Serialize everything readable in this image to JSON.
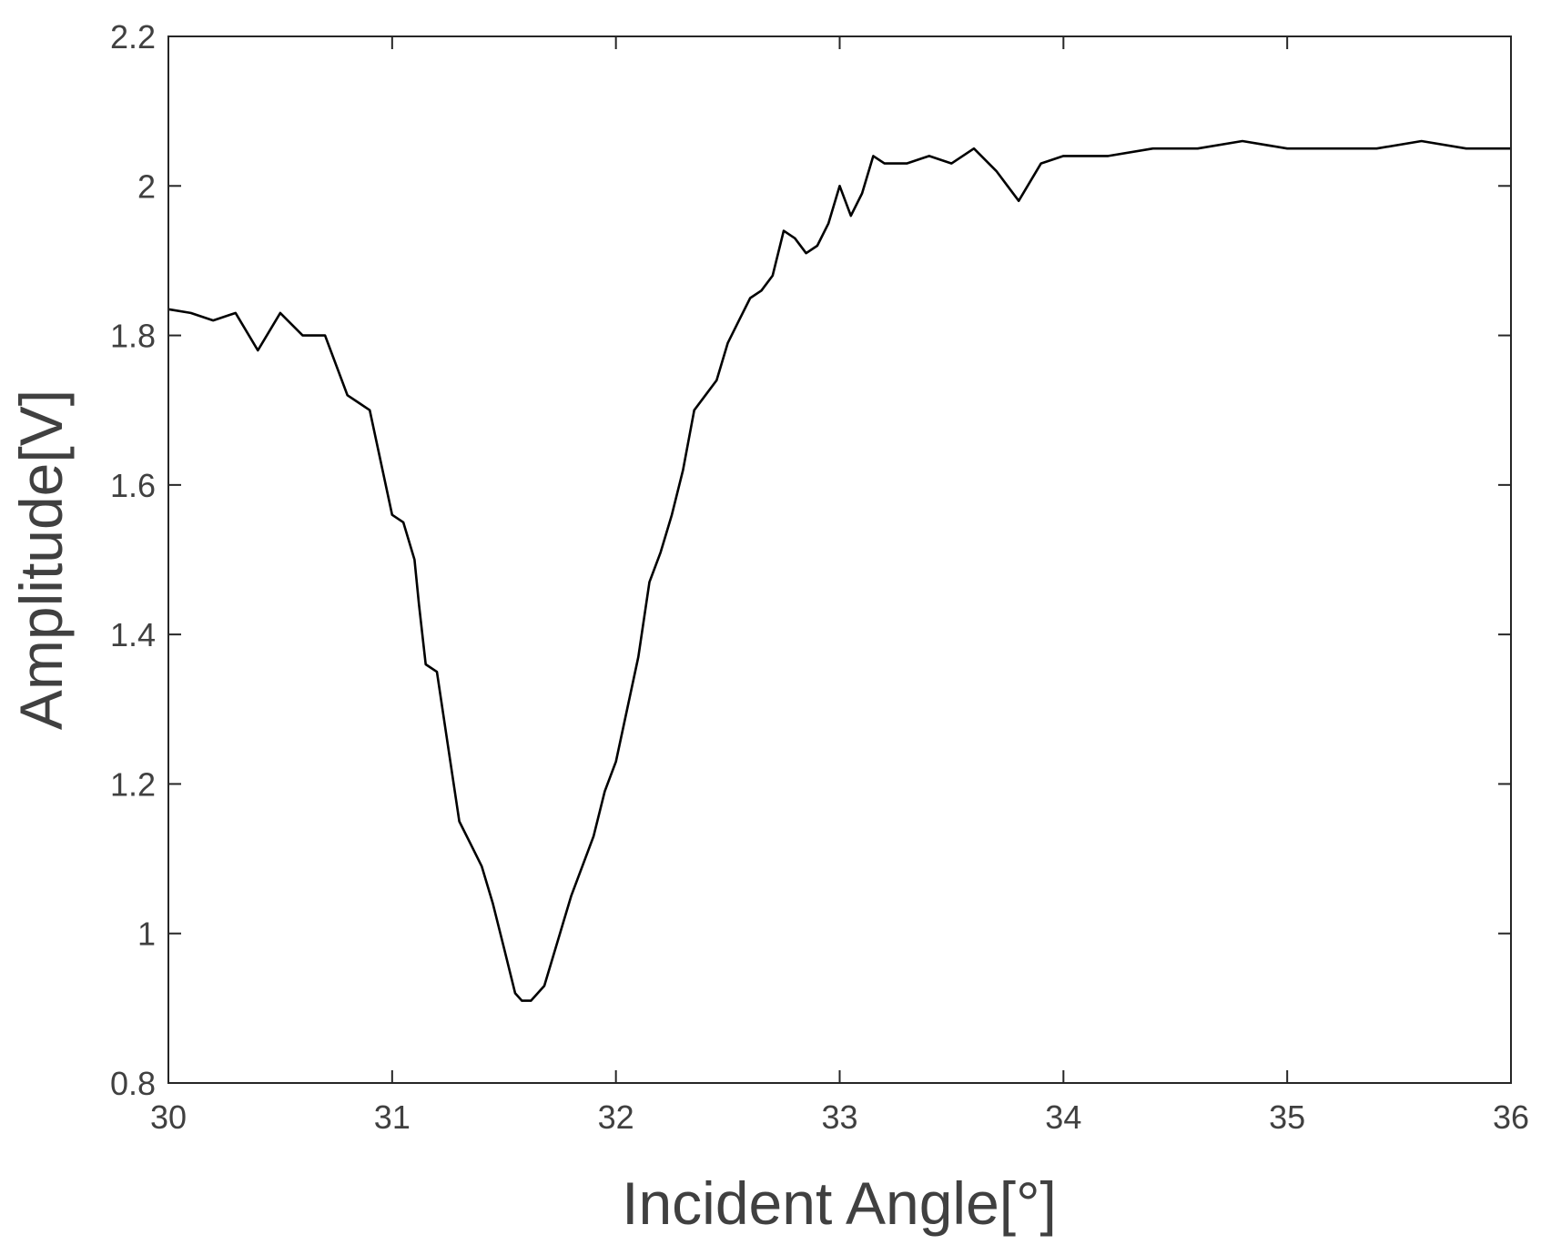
{
  "chart_data": {
    "type": "line",
    "title": "",
    "xlabel": "Incident Angle[°]",
    "ylabel": "Amplitude[V]",
    "xlim": [
      30,
      36
    ],
    "ylim": [
      0.8,
      2.2
    ],
    "x_ticks": [
      "30",
      "31",
      "32",
      "33",
      "34",
      "35",
      "36"
    ],
    "y_ticks": [
      "0.8",
      "1",
      "1.2",
      "1.4",
      "1.6",
      "1.8",
      "2",
      "2.2"
    ],
    "grid": false,
    "legend": "none",
    "line_color": "#000000",
    "series": [
      {
        "x": [
          30.0,
          30.1,
          30.2,
          30.3,
          30.4,
          30.5,
          30.6,
          30.7,
          30.8,
          30.85,
          30.9,
          30.95,
          31.0,
          31.05,
          31.1,
          31.12,
          31.15,
          31.2,
          31.25,
          31.3,
          31.35,
          31.4,
          31.45,
          31.5,
          31.55,
          31.58,
          31.62,
          31.68,
          31.75,
          31.8,
          31.85,
          31.9,
          31.95,
          32.0,
          32.05,
          32.1,
          32.15,
          32.2,
          32.25,
          32.3,
          32.35,
          32.4,
          32.45,
          32.5,
          32.55,
          32.6,
          32.65,
          32.7,
          32.75,
          32.8,
          32.85,
          32.9,
          32.95,
          33.0,
          33.05,
          33.1,
          33.15,
          33.2,
          33.3,
          33.4,
          33.5,
          33.6,
          33.7,
          33.75,
          33.8,
          33.9,
          34.0,
          34.2,
          34.4,
          34.6,
          34.8,
          35.0,
          35.2,
          35.4,
          35.6,
          35.8,
          36.0
        ],
        "y": [
          1.835,
          1.83,
          1.82,
          1.83,
          1.78,
          1.83,
          1.8,
          1.8,
          1.72,
          1.71,
          1.7,
          1.63,
          1.56,
          1.55,
          1.5,
          1.44,
          1.36,
          1.35,
          1.25,
          1.15,
          1.12,
          1.09,
          1.04,
          0.98,
          0.92,
          0.91,
          0.91,
          0.93,
          1.0,
          1.05,
          1.09,
          1.13,
          1.19,
          1.23,
          1.3,
          1.37,
          1.47,
          1.51,
          1.56,
          1.62,
          1.7,
          1.72,
          1.74,
          1.79,
          1.82,
          1.85,
          1.86,
          1.88,
          1.94,
          1.93,
          1.91,
          1.92,
          1.95,
          2.0,
          1.96,
          1.99,
          2.04,
          2.03,
          2.03,
          2.04,
          2.03,
          2.05,
          2.02,
          2.0,
          1.98,
          2.03,
          2.04,
          2.04,
          2.05,
          2.05,
          2.06,
          2.05,
          2.05,
          2.05,
          2.06,
          2.05,
          2.05
        ]
      }
    ]
  }
}
